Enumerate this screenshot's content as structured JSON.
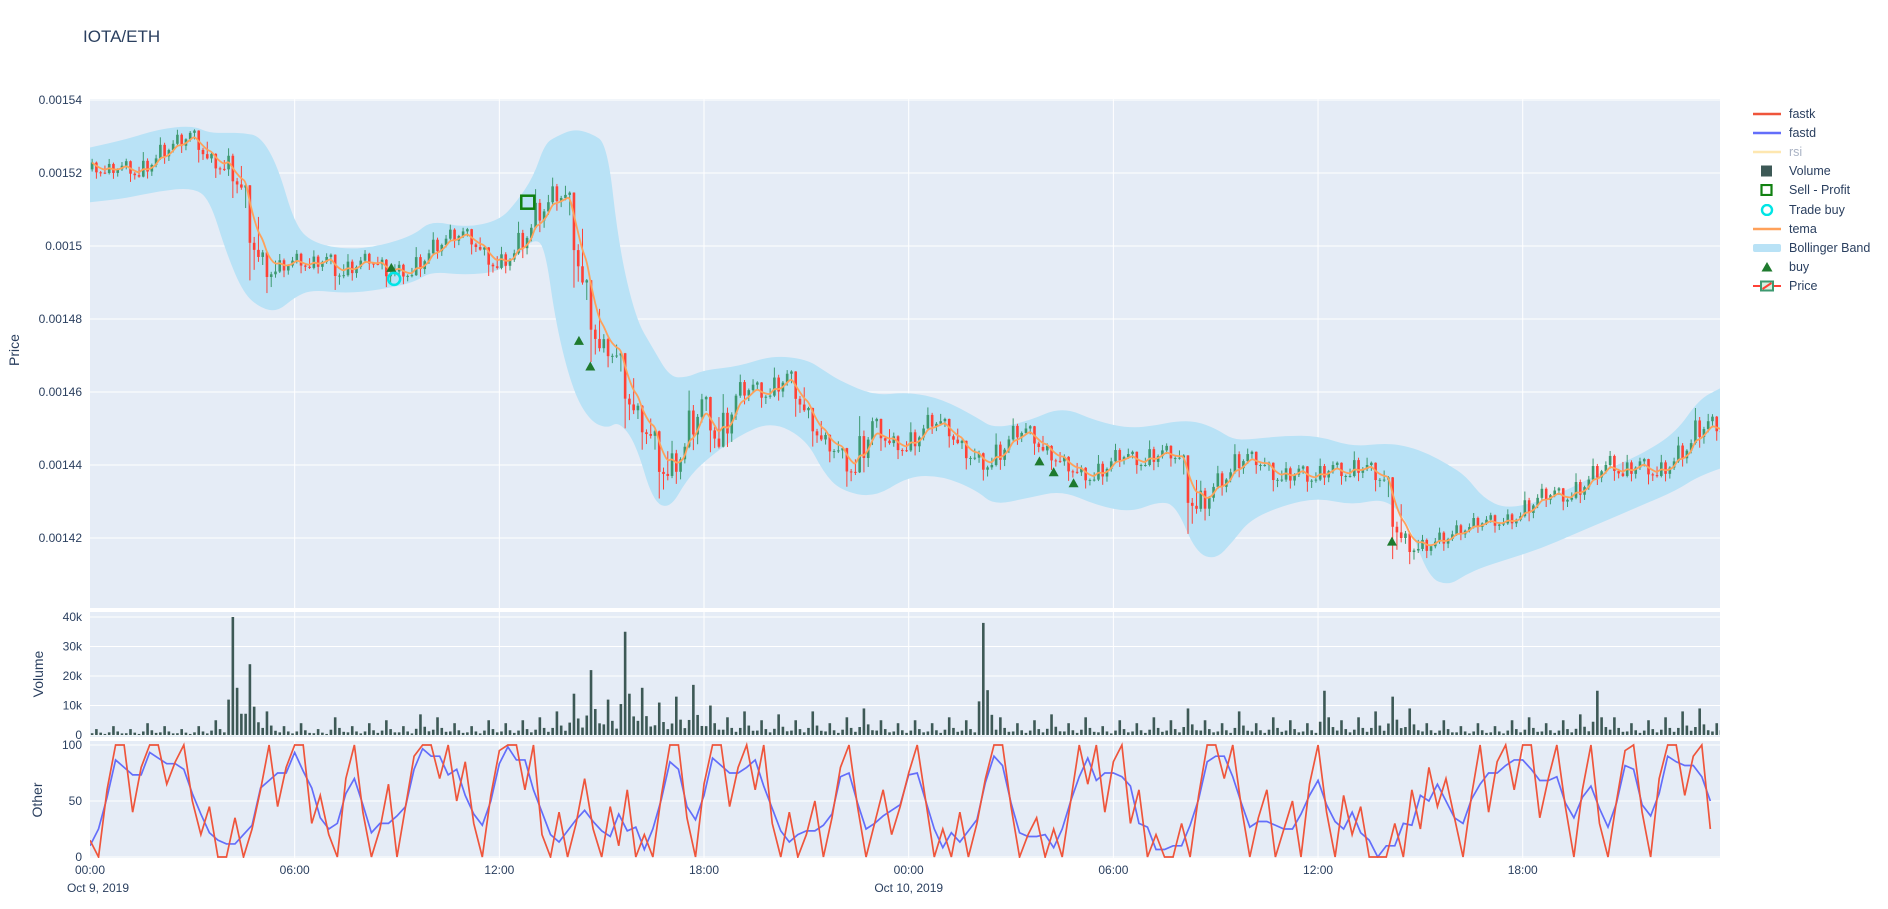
{
  "title": "IOTA/ETH",
  "colors": {
    "font": "#2a3f5f",
    "panel_bg": "#E5ECF6",
    "grid": "#ffffff",
    "candle_up": "#3D9970",
    "candle_down": "#FF4136",
    "candle_up_fill": "#d7f0e2",
    "volume_bar": "#3D5956",
    "fastk": "#EF553B",
    "fastd": "#636EFA",
    "rsi": "#FECB52",
    "tema": "#FFA15A",
    "bollinger": "#B9E2F6",
    "buy": "#1E7A2E",
    "sell_profit": "#118111",
    "trade_buy": "#00E5E5"
  },
  "legend": {
    "items": [
      {
        "label": "fastk",
        "type": "line",
        "color_key": "fastk",
        "muted": false
      },
      {
        "label": "fastd",
        "type": "line",
        "color_key": "fastd",
        "muted": false
      },
      {
        "label": "rsi",
        "type": "line",
        "color_key": "rsi",
        "muted": true
      },
      {
        "label": "Volume",
        "type": "square",
        "color_key": "volume_bar",
        "muted": false
      },
      {
        "label": "Sell - Profit",
        "type": "open-square",
        "color_key": "sell_profit",
        "muted": false
      },
      {
        "label": "Trade buy",
        "type": "open-circle",
        "color_key": "trade_buy",
        "muted": false
      },
      {
        "label": "tema",
        "type": "line",
        "color_key": "tema",
        "muted": false
      },
      {
        "label": "Bollinger Band",
        "type": "band",
        "color_key": "bollinger",
        "muted": false
      },
      {
        "label": "buy",
        "type": "triangle",
        "color_key": "buy",
        "muted": false
      },
      {
        "label": "Price",
        "type": "candle",
        "color_key": "candle_up",
        "muted": false
      }
    ]
  },
  "axes": {
    "price": {
      "title": "Price",
      "ticks": [
        {
          "v": 1540,
          "label": "0.00154"
        },
        {
          "v": 1520,
          "label": "0.00152"
        },
        {
          "v": 1500,
          "label": "0.0015"
        },
        {
          "v": 1480,
          "label": "0.00148"
        },
        {
          "v": 1460,
          "label": "0.00146"
        },
        {
          "v": 1440,
          "label": "0.00144"
        },
        {
          "v": 1420,
          "label": "0.00142"
        }
      ]
    },
    "volume": {
      "title": "Volume",
      "ticks": [
        {
          "v": 0,
          "label": "0"
        },
        {
          "v": 10,
          "label": "10k"
        },
        {
          "v": 20,
          "label": "20k"
        },
        {
          "v": 30,
          "label": "30k"
        },
        {
          "v": 40,
          "label": "40k"
        }
      ]
    },
    "other": {
      "title": "Other",
      "ticks": [
        {
          "v": 0,
          "label": "0"
        },
        {
          "v": 50,
          "label": "50"
        },
        {
          "v": 100,
          "label": "100"
        }
      ]
    },
    "x": {
      "ticks": [
        {
          "t": 0,
          "label": "00:00",
          "date": "Oct 9, 2019"
        },
        {
          "t": 360,
          "label": "06:00",
          "date": ""
        },
        {
          "t": 720,
          "label": "12:00",
          "date": ""
        },
        {
          "t": 1080,
          "label": "18:00",
          "date": ""
        },
        {
          "t": 1440,
          "label": "00:00",
          "date": "Oct 10, 2019"
        },
        {
          "t": 1800,
          "label": "06:00",
          "date": ""
        },
        {
          "t": 2160,
          "label": "12:00",
          "date": ""
        },
        {
          "t": 2520,
          "label": "18:00",
          "date": ""
        }
      ]
    }
  },
  "chart_data": {
    "type": "candlestick",
    "pair": "IOTA/ETH",
    "panels": [
      "price",
      "volume",
      "other"
    ],
    "time_start": "Oct 9, 2019 00:00",
    "time_end": "Oct 10, 2019 23:45",
    "interval_minutes": 30,
    "price_unit": "ETH, values are micro-ETH (1520 = 0.00152)",
    "price_range": [
      0.0014,
      0.001544
    ],
    "volume_range_k": [
      0,
      42
    ],
    "other_range": [
      0,
      104
    ],
    "candles": [
      [
        1521,
        1524,
        1518,
        1520
      ],
      [
        1520,
        1524,
        1518,
        1522
      ],
      [
        1522,
        1524,
        1517,
        1519
      ],
      [
        1519,
        1526,
        1518,
        1524
      ],
      [
        1524,
        1530,
        1522,
        1528
      ],
      [
        1528,
        1532,
        1525,
        1531
      ],
      [
        1531,
        1532,
        1522,
        1524
      ],
      [
        1524,
        1526,
        1518,
        1521
      ],
      [
        1521,
        1527,
        1512,
        1516
      ],
      [
        1516,
        1517,
        1488,
        1497
      ],
      [
        1497,
        1499,
        1486,
        1493
      ],
      [
        1493,
        1498,
        1491,
        1496
      ],
      [
        1496,
        1499,
        1492,
        1494
      ],
      [
        1494,
        1499,
        1492,
        1497
      ],
      [
        1497,
        1498,
        1487,
        1492
      ],
      [
        1492,
        1498,
        1490,
        1496
      ],
      [
        1496,
        1499,
        1493,
        1495
      ],
      [
        1495,
        1497,
        1488,
        1493
      ],
      [
        1493,
        1496,
        1489,
        1492
      ],
      [
        1492,
        1500,
        1491,
        1498
      ],
      [
        1498,
        1504,
        1496,
        1502
      ],
      [
        1502,
        1506,
        1499,
        1504
      ],
      [
        1504,
        1505,
        1497,
        1499
      ],
      [
        1499,
        1500,
        1491,
        1494
      ],
      [
        1494,
        1500,
        1492,
        1498
      ],
      [
        1498,
        1507,
        1496,
        1505
      ],
      [
        1505,
        1516,
        1503,
        1512
      ],
      [
        1512,
        1519,
        1509,
        1514
      ],
      [
        1514,
        1515,
        1486,
        1490
      ],
      [
        1490,
        1491,
        1466,
        1472
      ],
      [
        1472,
        1476,
        1466,
        1470
      ],
      [
        1470,
        1471,
        1448,
        1455
      ],
      [
        1455,
        1457,
        1443,
        1448
      ],
      [
        1448,
        1450,
        1429,
        1437
      ],
      [
        1437,
        1447,
        1434,
        1445
      ],
      [
        1445,
        1461,
        1443,
        1458
      ],
      [
        1458,
        1459,
        1442,
        1445
      ],
      [
        1445,
        1460,
        1444,
        1459
      ],
      [
        1459,
        1465,
        1456,
        1462
      ],
      [
        1462,
        1463,
        1455,
        1459
      ],
      [
        1459,
        1467,
        1457,
        1465
      ],
      [
        1465,
        1466,
        1452,
        1455
      ],
      [
        1455,
        1456,
        1444,
        1447
      ],
      [
        1447,
        1449,
        1440,
        1444
      ],
      [
        1444,
        1445,
        1433,
        1438
      ],
      [
        1438,
        1454,
        1437,
        1452
      ],
      [
        1452,
        1453,
        1443,
        1446
      ],
      [
        1446,
        1449,
        1441,
        1444
      ],
      [
        1444,
        1452,
        1442,
        1450
      ],
      [
        1450,
        1456,
        1448,
        1452
      ],
      [
        1452,
        1453,
        1444,
        1446
      ],
      [
        1446,
        1447,
        1438,
        1442
      ],
      [
        1442,
        1444,
        1435,
        1440
      ],
      [
        1440,
        1449,
        1438,
        1447
      ],
      [
        1447,
        1453,
        1445,
        1450
      ],
      [
        1450,
        1451,
        1442,
        1444
      ],
      [
        1444,
        1446,
        1438,
        1441
      ],
      [
        1441,
        1443,
        1435,
        1438
      ],
      [
        1438,
        1440,
        1433,
        1436
      ],
      [
        1436,
        1443,
        1434,
        1441
      ],
      [
        1441,
        1446,
        1439,
        1443
      ],
      [
        1443,
        1444,
        1437,
        1440
      ],
      [
        1440,
        1447,
        1438,
        1444
      ],
      [
        1444,
        1446,
        1439,
        1442
      ],
      [
        1442,
        1443,
        1419,
        1428
      ],
      [
        1428,
        1436,
        1424,
        1434
      ],
      [
        1434,
        1440,
        1431,
        1438
      ],
      [
        1438,
        1446,
        1436,
        1443
      ],
      [
        1443,
        1444,
        1437,
        1440
      ],
      [
        1440,
        1441,
        1432,
        1436
      ],
      [
        1436,
        1441,
        1433,
        1439
      ],
      [
        1439,
        1440,
        1432,
        1436
      ],
      [
        1436,
        1442,
        1434,
        1440
      ],
      [
        1440,
        1441,
        1434,
        1437
      ],
      [
        1437,
        1444,
        1435,
        1440
      ],
      [
        1440,
        1441,
        1432,
        1436
      ],
      [
        1436,
        1437,
        1412,
        1420
      ],
      [
        1420,
        1422,
        1412,
        1417
      ],
      [
        1417,
        1421,
        1414,
        1419
      ],
      [
        1419,
        1423,
        1416,
        1421
      ],
      [
        1421,
        1425,
        1419,
        1423
      ],
      [
        1423,
        1427,
        1421,
        1425
      ],
      [
        1425,
        1427,
        1421,
        1424
      ],
      [
        1424,
        1428,
        1422,
        1426
      ],
      [
        1426,
        1433,
        1424,
        1431
      ],
      [
        1431,
        1435,
        1428,
        1433
      ],
      [
        1433,
        1434,
        1427,
        1431
      ],
      [
        1431,
        1438,
        1429,
        1436
      ],
      [
        1436,
        1442,
        1434,
        1440
      ],
      [
        1440,
        1444,
        1435,
        1437
      ],
      [
        1437,
        1443,
        1435,
        1441
      ],
      [
        1441,
        1442,
        1434,
        1437
      ],
      [
        1437,
        1443,
        1435,
        1441
      ],
      [
        1441,
        1448,
        1439,
        1446
      ],
      [
        1446,
        1456,
        1444,
        1452
      ],
      [
        1452,
        1454,
        1446,
        1449
      ]
    ],
    "bollinger": [
      [
        0,
        1512,
        1527
      ],
      [
        60,
        1513,
        1529
      ],
      [
        120,
        1515,
        1532
      ],
      [
        180,
        1516,
        1533
      ],
      [
        210,
        1513,
        1531
      ],
      [
        240,
        1498,
        1531
      ],
      [
        270,
        1487,
        1531
      ],
      [
        300,
        1483,
        1530
      ],
      [
        330,
        1482,
        1522
      ],
      [
        360,
        1486,
        1506
      ],
      [
        390,
        1488,
        1501
      ],
      [
        450,
        1487,
        1499
      ],
      [
        510,
        1488,
        1500
      ],
      [
        570,
        1490,
        1503
      ],
      [
        600,
        1493,
        1507
      ],
      [
        660,
        1492,
        1505
      ],
      [
        720,
        1493,
        1507
      ],
      [
        750,
        1497,
        1512
      ],
      [
        780,
        1502,
        1519
      ],
      [
        800,
        1500,
        1528
      ],
      [
        820,
        1478,
        1530
      ],
      [
        850,
        1460,
        1532
      ],
      [
        880,
        1452,
        1531
      ],
      [
        910,
        1450,
        1528
      ],
      [
        930,
        1452,
        1500
      ],
      [
        960,
        1446,
        1480
      ],
      [
        990,
        1430,
        1472
      ],
      [
        1020,
        1428,
        1464
      ],
      [
        1050,
        1436,
        1464
      ],
      [
        1080,
        1441,
        1466
      ],
      [
        1140,
        1448,
        1467
      ],
      [
        1200,
        1452,
        1470
      ],
      [
        1260,
        1447,
        1469
      ],
      [
        1290,
        1438,
        1466
      ],
      [
        1320,
        1433,
        1463
      ],
      [
        1380,
        1431,
        1459
      ],
      [
        1440,
        1437,
        1460
      ],
      [
        1500,
        1437,
        1458
      ],
      [
        1560,
        1433,
        1453
      ],
      [
        1590,
        1429,
        1450
      ],
      [
        1650,
        1431,
        1452
      ],
      [
        1710,
        1433,
        1456
      ],
      [
        1770,
        1429,
        1452
      ],
      [
        1830,
        1427,
        1450
      ],
      [
        1880,
        1430,
        1451
      ],
      [
        1910,
        1429,
        1452
      ],
      [
        1945,
        1416,
        1452
      ],
      [
        1980,
        1414,
        1450
      ],
      [
        2010,
        1419,
        1447
      ],
      [
        2040,
        1425,
        1447
      ],
      [
        2100,
        1429,
        1448
      ],
      [
        2160,
        1431,
        1448
      ],
      [
        2220,
        1429,
        1445
      ],
      [
        2280,
        1431,
        1446
      ],
      [
        2320,
        1424,
        1445
      ],
      [
        2355,
        1409,
        1443
      ],
      [
        2390,
        1407,
        1440
      ],
      [
        2420,
        1410,
        1437
      ],
      [
        2450,
        1412,
        1431
      ],
      [
        2490,
        1414,
        1428
      ],
      [
        2550,
        1417,
        1430
      ],
      [
        2610,
        1421,
        1434
      ],
      [
        2670,
        1425,
        1439
      ],
      [
        2730,
        1429,
        1443
      ],
      [
        2790,
        1433,
        1449
      ],
      [
        2830,
        1437,
        1458
      ],
      [
        2867,
        1439,
        1461
      ]
    ],
    "volume_k": [
      2,
      3,
      2,
      4,
      3,
      2,
      3,
      5,
      40,
      24,
      8,
      3,
      4,
      2,
      6,
      3,
      4,
      5,
      3,
      7,
      6,
      4,
      3,
      5,
      4,
      5,
      6,
      8,
      14,
      22,
      12,
      35,
      16,
      11,
      13,
      17,
      10,
      6,
      8,
      5,
      7,
      5,
      8,
      4,
      6,
      9,
      5,
      4,
      5,
      4,
      6,
      5,
      38,
      6,
      4,
      5,
      7,
      4,
      6,
      3,
      5,
      4,
      6,
      5,
      9,
      5,
      4,
      8,
      4,
      6,
      5,
      4,
      15,
      5,
      6,
      8,
      13,
      9,
      4,
      5,
      3,
      4,
      3,
      5,
      6,
      4,
      5,
      7,
      15,
      6,
      4,
      5,
      6,
      8,
      9,
      4
    ],
    "fastk_interval_minutes": 15,
    "fastk": [
      15,
      0,
      60,
      100,
      100,
      40,
      80,
      100,
      100,
      65,
      85,
      100,
      50,
      20,
      45,
      0,
      0,
      35,
      0,
      25,
      60,
      100,
      45,
      80,
      100,
      100,
      30,
      55,
      20,
      0,
      70,
      100,
      40,
      0,
      25,
      65,
      0,
      45,
      90,
      100,
      100,
      70,
      100,
      50,
      85,
      30,
      0,
      55,
      95,
      100,
      100,
      60,
      100,
      20,
      0,
      40,
      0,
      30,
      70,
      25,
      0,
      45,
      10,
      60,
      0,
      20,
      0,
      55,
      100,
      100,
      35,
      0,
      65,
      100,
      100,
      45,
      80,
      100,
      60,
      100,
      30,
      0,
      40,
      0,
      20,
      50,
      0,
      35,
      80,
      100,
      45,
      0,
      30,
      60,
      20,
      45,
      75,
      100,
      50,
      0,
      25,
      0,
      40,
      0,
      30,
      70,
      100,
      100,
      45,
      0,
      20,
      35,
      0,
      25,
      0,
      50,
      100,
      65,
      100,
      40,
      85,
      100,
      30,
      60,
      0,
      20,
      0,
      0,
      30,
      0,
      55,
      100,
      100,
      70,
      100,
      45,
      0,
      35,
      60,
      0,
      25,
      50,
      0,
      65,
      100,
      40,
      0,
      55,
      20,
      45,
      0,
      0,
      0,
      30,
      0,
      60,
      25,
      80,
      45,
      70,
      35,
      0,
      55,
      100,
      40,
      85,
      100,
      60,
      100,
      100,
      35,
      70,
      100,
      45,
      0,
      60,
      100,
      30,
      0,
      50,
      95,
      100,
      40,
      0,
      70,
      100,
      100,
      55,
      90,
      100,
      25
    ],
    "fastd_note": "fastd = 3-point moving average of fastk",
    "markers": {
      "buy": [
        {
          "t": 530,
          "price": 1494,
          "time": "Oct 9 08:50"
        },
        {
          "t": 860,
          "price": 1474,
          "time": "Oct 9 14:20"
        },
        {
          "t": 880,
          "price": 1467,
          "time": "Oct 9 14:40"
        },
        {
          "t": 1670,
          "price": 1441,
          "time": "Oct 10 03:50"
        },
        {
          "t": 1695,
          "price": 1438,
          "time": "Oct 10 04:15"
        },
        {
          "t": 1730,
          "price": 1435,
          "time": "Oct 10 04:50"
        },
        {
          "t": 2290,
          "price": 1419,
          "time": "Oct 10 14:10"
        }
      ],
      "sell_profit": [
        {
          "t": 770,
          "price": 1512,
          "time": "Oct 9 12:50"
        }
      ],
      "trade_buy": [
        {
          "t": 535,
          "price": 1491,
          "time": "Oct 9 08:55"
        }
      ]
    }
  }
}
